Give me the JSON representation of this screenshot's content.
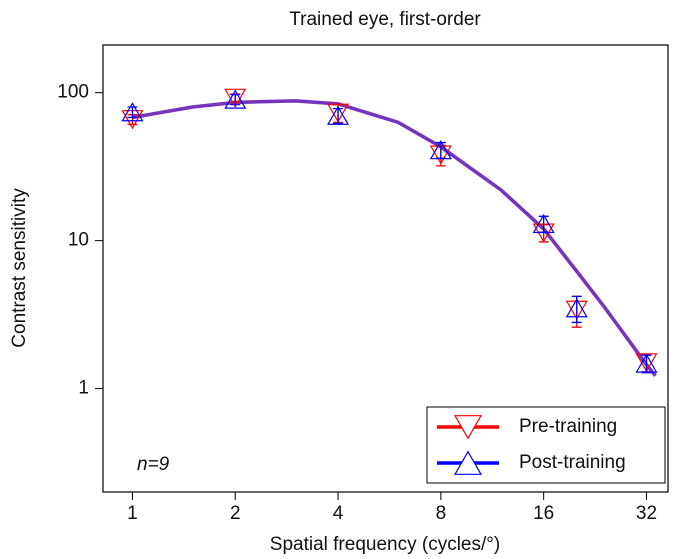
{
  "chart_data": {
    "type": "scatter",
    "title": "Trained eye, first-order",
    "x_label": "Spatial frequency (cycles/°)",
    "y_label": "Contrast sensitivity",
    "annotation": "n=9",
    "xscale": "log",
    "yscale": "log",
    "xlim": [
      0.82,
      37
    ],
    "ylim": [
      0.2,
      210
    ],
    "xticks": [
      1,
      2,
      4,
      8,
      16,
      32
    ],
    "yticks": [
      1,
      10,
      100
    ],
    "legend": "lower right",
    "x": [
      1,
      2,
      4,
      8,
      16,
      20,
      32
    ],
    "fit_x": [
      1,
      1.5,
      2,
      3,
      4,
      6,
      8,
      12,
      16,
      20,
      24,
      32,
      34
    ],
    "series": [
      {
        "name": "Pre-training",
        "color": "#ff0000",
        "marker": "down-triangle",
        "values": [
          66,
          92,
          73,
          38,
          11.3,
          3.4,
          1.5
        ],
        "errors": [
          5,
          6,
          10,
          6,
          1.5,
          0.8,
          0.2
        ],
        "fit_values": [
          68,
          80,
          86,
          88,
          84,
          63,
          43,
          22,
          12,
          6.2,
          3.6,
          1.45,
          1.22
        ]
      },
      {
        "name": "Post-training",
        "color": "#0000ff",
        "marker": "up-triangle",
        "values": [
          74,
          90,
          70,
          41,
          13,
          3.5,
          1.48
        ],
        "errors": [
          6,
          7,
          8,
          5,
          1.6,
          0.7,
          0.2
        ],
        "fit_values": [
          68,
          80,
          86,
          88,
          84,
          63,
          43,
          22,
          12,
          6.2,
          3.6,
          1.45,
          1.22
        ]
      }
    ]
  }
}
